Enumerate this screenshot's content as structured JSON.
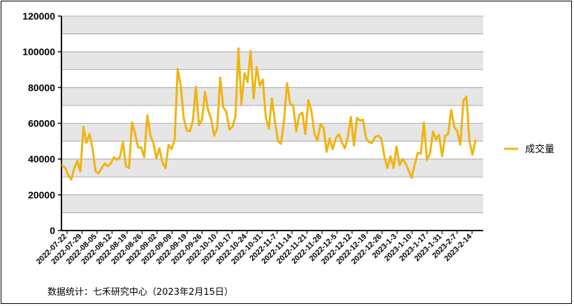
{
  "source_note": "数据统计：七禾研究中心（2023年2月15日）",
  "colors": {
    "series": "#f0b40f",
    "band": "#e6e6e6",
    "grid": "#9a9a9a",
    "axis": "#000000"
  },
  "chart_data": {
    "type": "line",
    "title": "",
    "xlabel": "",
    "ylabel": "",
    "ylim": [
      0,
      120000
    ],
    "yticks": [
      0,
      20000,
      40000,
      60000,
      80000,
      100000,
      120000
    ],
    "grid": true,
    "legend_position": "right",
    "x_tick_labels": [
      "2022-07-22",
      "2022-07-29",
      "2022-08-05",
      "2022-08-12",
      "2022-08-19",
      "2022-08-26",
      "2022-09-02",
      "2022-09-09",
      "2022-09-19",
      "2022-09-26",
      "2022-10-10",
      "2022-10-17",
      "2022-10-24",
      "2022-10-31",
      "2022-11-7",
      "2022-11-14",
      "2022-11-21",
      "2022-11-28",
      "2022-12-5",
      "2022-12-12",
      "2022-12-19",
      "2022-12-26",
      "2023-1-3",
      "2023-1-10",
      "2023-1-17",
      "2023-1-31",
      "2023-2-7",
      "2023-2-14"
    ],
    "series": [
      {
        "name": "成交量",
        "values": [
          36500,
          35000,
          31000,
          28500,
          35000,
          39000,
          33000,
          58000,
          49000,
          54000,
          46000,
          33000,
          32000,
          35000,
          37500,
          36000,
          37500,
          41000,
          39500,
          41000,
          49500,
          36000,
          35000,
          60500,
          54000,
          46500,
          46500,
          41000,
          64500,
          53500,
          49000,
          40500,
          46000,
          38000,
          35000,
          48000,
          45500,
          51000,
          90500,
          81000,
          63000,
          56000,
          55500,
          61500,
          80500,
          59000,
          62000,
          77500,
          67500,
          62500,
          53000,
          57000,
          85500,
          69000,
          66500,
          56500,
          58000,
          63500,
          102000,
          70500,
          88000,
          83000,
          100500,
          74000,
          91500,
          81000,
          84500,
          63500,
          57000,
          74000,
          61000,
          50000,
          48500,
          61500,
          82500,
          71000,
          70000,
          55500,
          64500,
          66000,
          54000,
          73000,
          67000,
          54000,
          50500,
          59500,
          57500,
          44000,
          51500,
          45500,
          51500,
          54000,
          49500,
          46000,
          52500,
          63500,
          47500,
          63000,
          61500,
          62000,
          51500,
          49500,
          49000,
          52500,
          53000,
          51500,
          41500,
          35000,
          41500,
          35000,
          47000,
          36500,
          40000,
          37500,
          33500,
          29500,
          37000,
          43500,
          43000,
          60500,
          39500,
          43000,
          55500,
          51000,
          53500,
          41500,
          53000,
          54000,
          67500,
          58000,
          55500,
          48000,
          72500,
          75000,
          50000,
          42500,
          50500
        ]
      }
    ]
  }
}
